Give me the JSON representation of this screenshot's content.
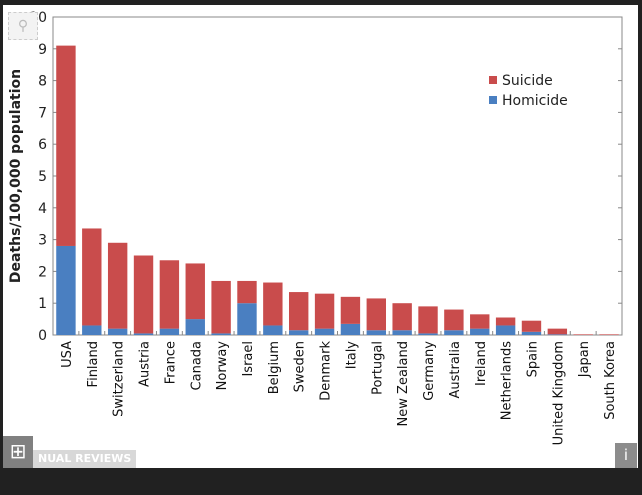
{
  "viewer": {
    "expand_icon": "plus-square-icon",
    "zoom_icon": "magnifier-icon",
    "info_label": "i",
    "watermark": "NUAL REVIEWS"
  },
  "chart_data": {
    "type": "bar",
    "stacked": true,
    "title": "",
    "xlabel": "",
    "ylabel": "Deaths/100,000 population",
    "ylim": [
      0,
      10
    ],
    "yticks": [
      "0",
      "1",
      "2",
      "3",
      "4",
      "5",
      "6",
      "7",
      "8",
      "9",
      "10"
    ],
    "grid": false,
    "legend_position": "top-right",
    "categories": [
      "USA",
      "Finland",
      "Switzerland",
      "Austria",
      "France",
      "Canada",
      "Norway",
      "Israel",
      "Belgium",
      "Sweden",
      "Denmark",
      "Italy",
      "Portugal",
      "New Zealand",
      "Germany",
      "Australia",
      "Ireland",
      "Netherlands",
      "Spain",
      "United Kingdom",
      "Japan",
      "South Korea"
    ],
    "series": [
      {
        "name": "Homicide",
        "color": "#4a7fc1",
        "values": [
          2.8,
          0.3,
          0.2,
          0.05,
          0.2,
          0.5,
          0.05,
          1.0,
          0.3,
          0.15,
          0.2,
          0.35,
          0.15,
          0.15,
          0.05,
          0.15,
          0.2,
          0.3,
          0.1,
          0.02,
          0,
          0
        ]
      },
      {
        "name": "Suicide",
        "color": "#c94c4c",
        "values": [
          6.3,
          3.05,
          2.7,
          2.45,
          2.15,
          1.75,
          1.65,
          0.7,
          1.35,
          1.2,
          1.1,
          0.85,
          1.0,
          0.85,
          0.85,
          0.65,
          0.45,
          0.25,
          0.35,
          0.18,
          0.02,
          0.02
        ]
      }
    ]
  }
}
